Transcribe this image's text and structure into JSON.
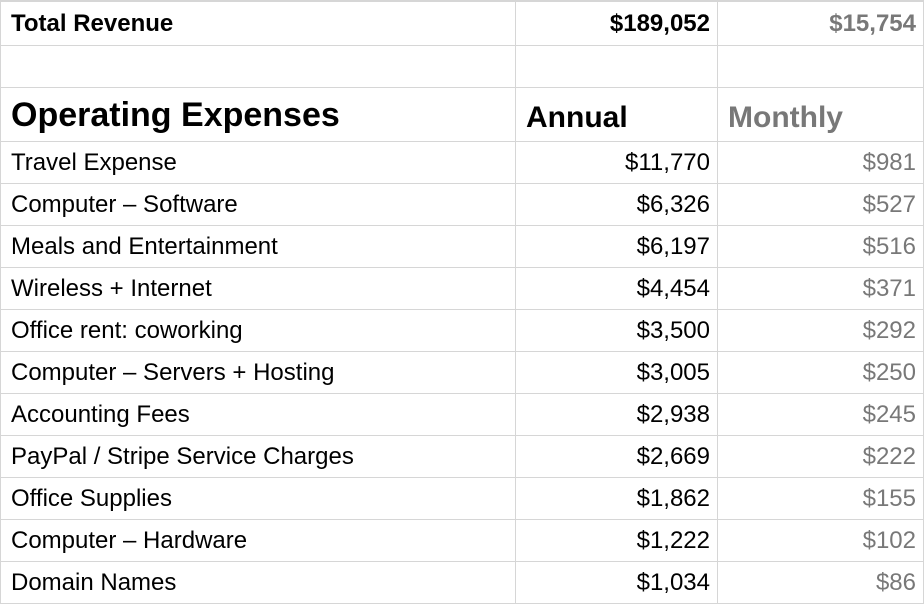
{
  "revenue": {
    "label": "Total Revenue",
    "annual": "$189,052",
    "monthly": "$15,754"
  },
  "expenses": {
    "title": "Operating Expenses",
    "annual_header": "Annual",
    "monthly_header": "Monthly",
    "rows": [
      {
        "label": "Travel Expense",
        "annual": "$11,770",
        "monthly": "$981"
      },
      {
        "label": "Computer – Software",
        "annual": "$6,326",
        "monthly": "$527"
      },
      {
        "label": "Meals and Entertainment",
        "annual": "$6,197",
        "monthly": "$516"
      },
      {
        "label": "Wireless + Internet",
        "annual": "$4,454",
        "monthly": "$371"
      },
      {
        "label": "Office rent: coworking",
        "annual": "$3,500",
        "monthly": "$292"
      },
      {
        "label": "Computer – Servers + Hosting",
        "annual": "$3,005",
        "monthly": "$250"
      },
      {
        "label": "Accounting Fees",
        "annual": "$2,938",
        "monthly": "$245"
      },
      {
        "label": "PayPal / Stripe Service Charges",
        "annual": "$2,669",
        "monthly": "$222"
      },
      {
        "label": "Office Supplies",
        "annual": "$1,862",
        "monthly": "$155"
      },
      {
        "label": "Computer – Hardware",
        "annual": "$1,222",
        "monthly": "$102"
      },
      {
        "label": "Domain Names",
        "annual": "$1,034",
        "monthly": "$86"
      }
    ]
  },
  "colors": {
    "grid_line": "#d6d6d6",
    "monthly_text": "#787878",
    "text": "#000000"
  }
}
